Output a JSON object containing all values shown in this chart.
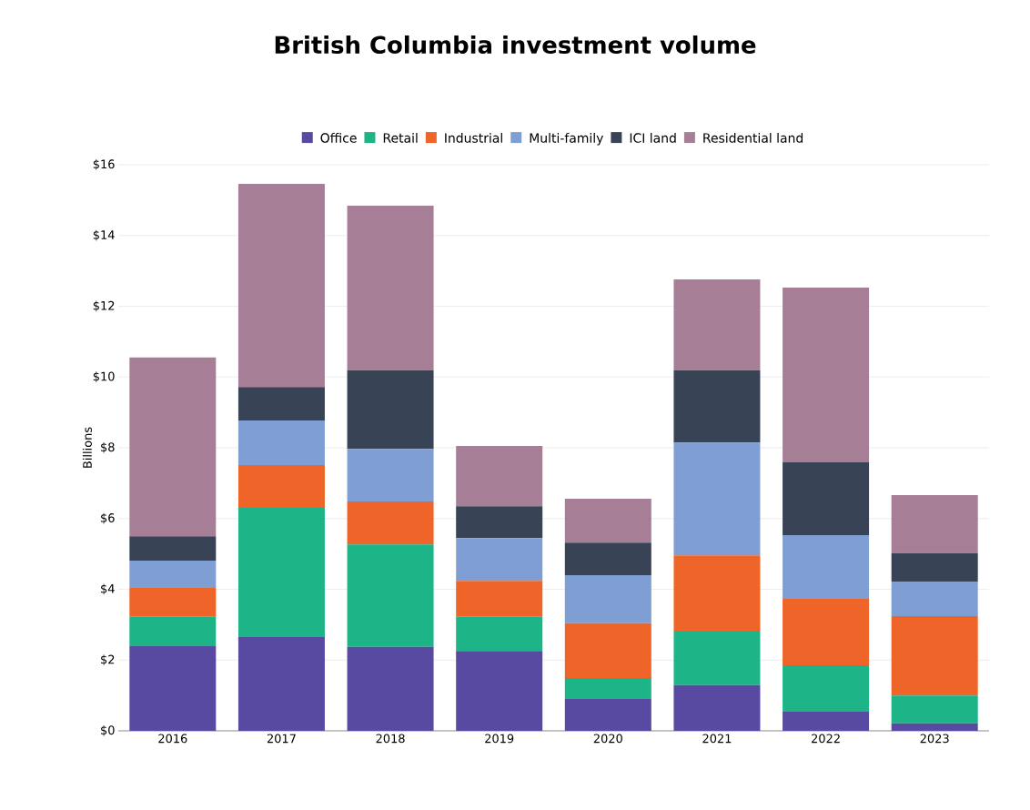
{
  "chart_data": {
    "type": "bar",
    "title": "British Columbia investment volume",
    "ylabel": "Billions",
    "categories": [
      "2016",
      "2017",
      "2018",
      "2019",
      "2020",
      "2021",
      "2022",
      "2023"
    ],
    "stacked": true,
    "series": [
      {
        "name": "Office",
        "color": "#574aa0",
        "values": [
          2.39,
          2.65,
          2.37,
          2.26,
          0.9,
          1.29,
          0.54,
          0.21
        ]
      },
      {
        "name": "Retail",
        "color": "#1db587",
        "values": [
          0.83,
          3.65,
          2.9,
          0.96,
          0.59,
          1.54,
          1.31,
          0.79
        ]
      },
      {
        "name": "Industrial",
        "color": "#ef6428",
        "values": [
          0.82,
          1.21,
          1.21,
          1.02,
          1.55,
          2.13,
          1.88,
          2.24
        ]
      },
      {
        "name": "Multi-family",
        "color": "#7f9fd4",
        "values": [
          0.77,
          1.26,
          1.49,
          1.21,
          1.36,
          3.19,
          1.8,
          0.98
        ]
      },
      {
        "name": "ICI land",
        "color": "#384456",
        "values": [
          0.69,
          0.95,
          2.22,
          0.9,
          0.92,
          2.04,
          2.06,
          0.8
        ]
      },
      {
        "name": "Residential land",
        "color": "#a67f96",
        "values": [
          5.05,
          5.74,
          4.65,
          1.7,
          1.24,
          2.57,
          4.94,
          1.64
        ]
      }
    ],
    "ylim": [
      0,
      16
    ],
    "yticks": [
      {
        "value": 0,
        "label": "$0"
      },
      {
        "value": 2,
        "label": "$2"
      },
      {
        "value": 4,
        "label": "$4"
      },
      {
        "value": 6,
        "label": "$6"
      },
      {
        "value": 8,
        "label": "$8"
      },
      {
        "value": 10,
        "label": "$10"
      },
      {
        "value": 12,
        "label": "$12"
      },
      {
        "value": 14,
        "label": "$14"
      },
      {
        "value": 16,
        "label": "$16"
      }
    ],
    "grid": "y",
    "legend": "top"
  }
}
